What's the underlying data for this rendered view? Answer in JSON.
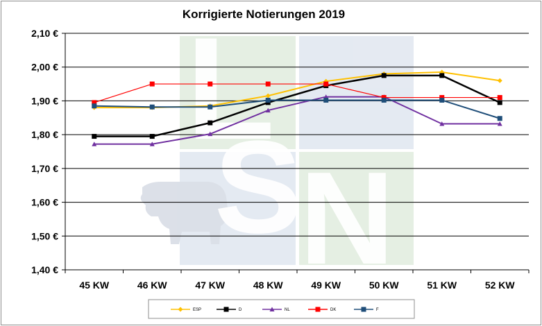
{
  "chart_data": {
    "type": "line",
    "title": "Korrigierte Notierungen 2019",
    "categories": [
      "45 KW",
      "46 KW",
      "47 KW",
      "48 KW",
      "49 KW",
      "50 KW",
      "51 KW",
      "52 KW"
    ],
    "ylim": [
      1.4,
      2.1
    ],
    "yticks": [
      "1,40 €",
      "1,50 €",
      "1,60 €",
      "1,70 €",
      "1,80 €",
      "1,90 €",
      "2,00 €",
      "2,10 €"
    ],
    "grid": true,
    "legend_position": "bottom",
    "series": [
      {
        "name": "ESP",
        "color": "#ffc000",
        "marker": "diamond",
        "values": [
          1.88,
          1.88,
          1.885,
          1.915,
          1.958,
          1.98,
          1.985,
          1.96
        ]
      },
      {
        "name": "D",
        "color": "#000000",
        "marker": "square",
        "values": [
          1.795,
          1.795,
          1.835,
          1.895,
          1.945,
          1.975,
          1.975,
          1.895
        ]
      },
      {
        "name": "NL",
        "color": "#7030a0",
        "marker": "triangle",
        "values": [
          1.772,
          1.772,
          1.802,
          1.872,
          1.912,
          1.912,
          1.832,
          1.832
        ]
      },
      {
        "name": "DK",
        "color": "#ff0000",
        "marker": "square",
        "values": [
          1.895,
          1.95,
          1.95,
          1.95,
          1.95,
          1.91,
          1.91,
          1.91
        ]
      },
      {
        "name": "F",
        "color": "#1f4e79",
        "marker": "square",
        "values": [
          1.885,
          1.882,
          1.882,
          1.902,
          1.902,
          1.902,
          1.902,
          1.848
        ]
      }
    ]
  },
  "watermark": {
    "letters": [
      "L",
      "S",
      "N"
    ]
  }
}
